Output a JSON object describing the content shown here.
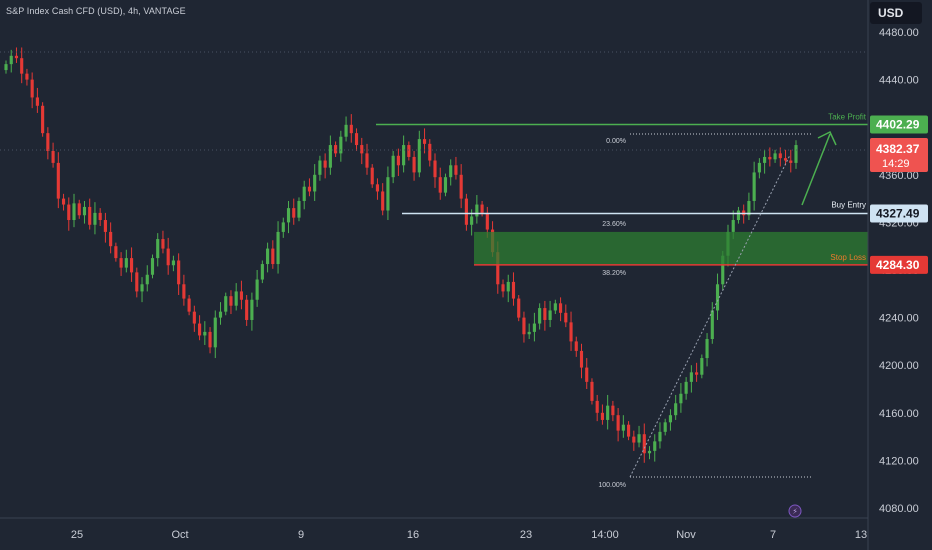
{
  "header": {
    "title": "S&P Index Cash CFD (USD), 4h, VANTAGE",
    "currency": "USD"
  },
  "colors": {
    "background": "#1f2633",
    "up": "#4caf50",
    "down": "#e53935",
    "grid": "#2b3240",
    "axis_text": "#c9cdd6",
    "take_profit": "#4caf50",
    "buy_entry": "#cfe3f3",
    "stop_loss": "#e53935",
    "zone_fill": "#2e7d32",
    "current_price": "#ef5350"
  },
  "chart_data": {
    "type": "candlestick",
    "title": "S&P Index Cash CFD (USD), 4h, VANTAGE",
    "ylim": [
      4060,
      4505
    ],
    "y_ticks": [
      4480,
      4440,
      4400,
      4360,
      4320,
      4280,
      4240,
      4200,
      4160,
      4120,
      4080
    ],
    "x_ticks": [
      "25",
      "Oct",
      "9",
      "16",
      "23",
      "14:00",
      "Nov",
      "7",
      "13"
    ],
    "grid": false,
    "close_series": [
      4453,
      4460,
      4458,
      4445,
      4440,
      4425,
      4418,
      4395,
      4380,
      4370,
      4340,
      4335,
      4322,
      4336,
      4326,
      4333,
      4318,
      4328,
      4322,
      4312,
      4300,
      4290,
      4282,
      4290,
      4278,
      4262,
      4268,
      4276,
      4290,
      4306,
      4298,
      4284,
      4288,
      4268,
      4256,
      4245,
      4235,
      4225,
      4228,
      4215,
      4240,
      4245,
      4258,
      4250,
      4262,
      4255,
      4238,
      4255,
      4272,
      4285,
      4298,
      4285,
      4312,
      4320,
      4332,
      4324,
      4338,
      4350,
      4346,
      4360,
      4372,
      4366,
      4385,
      4378,
      4392,
      4402,
      4395,
      4385,
      4378,
      4366,
      4352,
      4346,
      4330,
      4358,
      4376,
      4368,
      4385,
      4375,
      4362,
      4390,
      4386,
      4372,
      4358,
      4345,
      4358,
      4368,
      4360,
      4340,
      4318,
      4325,
      4335,
      4328,
      4314,
      4295,
      4268,
      4262,
      4270,
      4256,
      4240,
      4226,
      4228,
      4235,
      4248,
      4238,
      4246,
      4252,
      4244,
      4236,
      4220,
      4212,
      4198,
      4186,
      4170,
      4160,
      4154,
      4166,
      4158,
      4145,
      4150,
      4140,
      4135,
      4142,
      4126,
      4128,
      4136,
      4144,
      4152,
      4158,
      4168,
      4176,
      4186,
      4194,
      4192,
      4206,
      4222,
      4246,
      4268,
      4292,
      4312,
      4322,
      4330,
      4326,
      4338,
      4362,
      4370,
      4375,
      4373,
      4378,
      4374,
      4372,
      4370,
      4385
    ],
    "open_value": 4448,
    "levels": [
      {
        "label": "Take Profit",
        "value": 4402.29
      },
      {
        "label": "Buy Entry",
        "value": 4327.49
      },
      {
        "label": "Stop Loss",
        "value": 4284.3
      }
    ],
    "price_tags": {
      "take_profit": "4402.29",
      "buy_entry": "4327.49",
      "stop_loss": "4284.30",
      "current": "4382.37",
      "countdown": "14:29"
    },
    "fib_labels": [
      "0.00%",
      "23.60%",
      "38.20%",
      "100.00%"
    ],
    "current_price": 4382.37,
    "entry_zone": [
      4284.3,
      4312
    ],
    "fib_top": 4400,
    "fib_bottom": 4105
  }
}
